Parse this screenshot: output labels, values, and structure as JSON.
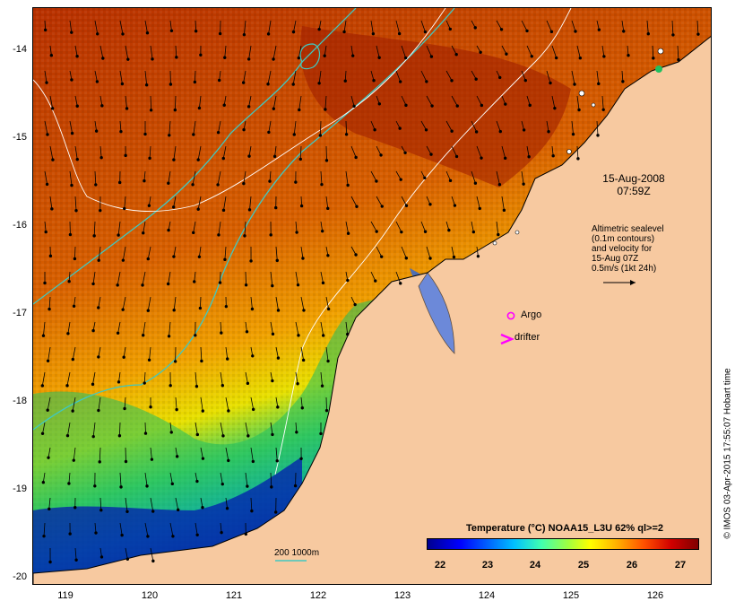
{
  "map": {
    "y_ticks": [
      "-14",
      "-15",
      "-16",
      "-17",
      "-18",
      "-19",
      "-20"
    ],
    "x_ticks": [
      "119",
      "120",
      "121",
      "122",
      "123",
      "124",
      "125",
      "126"
    ],
    "date_lines": [
      "15-Aug-2008",
      "07:59Z"
    ],
    "altimetry_lines": [
      "Altimetric sealevel",
      "(0.1m contours)",
      "and velocity for",
      "15-Aug 07Z",
      "0.5m/s (1kt 24h)"
    ],
    "argo_label": "Argo",
    "drifter_label": "drifter",
    "contour_legend": "200  1000m",
    "credit": "© IMOS 03-Apr-2015 17:55:07 Hobart time",
    "colors": {
      "land": "#f7c9a0",
      "argo_marker": "#ff00ff",
      "drifter_marker": "#ff00ff",
      "contour": "#40c8c0"
    }
  },
  "colorbar": {
    "title": "Temperature (°C) NOAA15_L3U 62% ql>=2",
    "ticks": [
      "22",
      "23",
      "24",
      "25",
      "26",
      "27"
    ]
  }
}
